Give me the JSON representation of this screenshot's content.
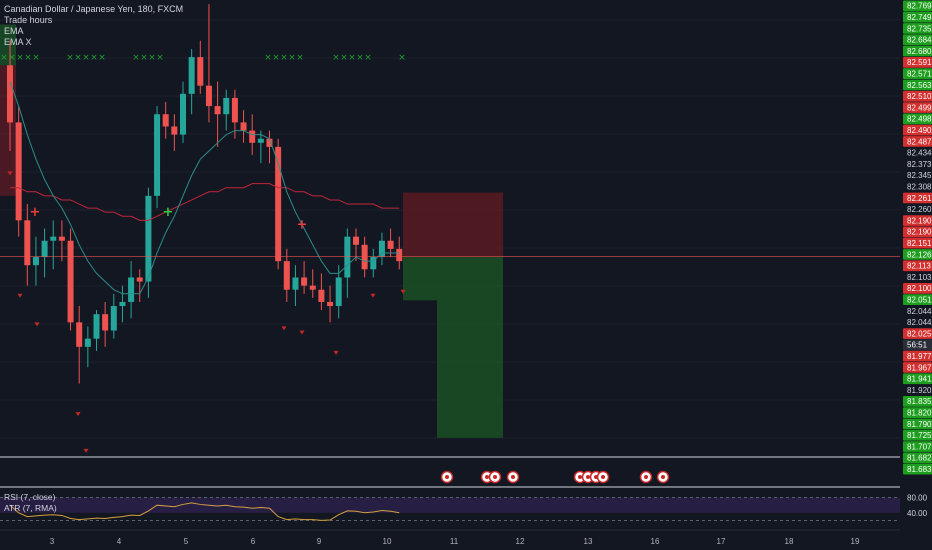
{
  "legend": {
    "symbol": "Canadian Dollar / Japanese Yen, 180, FXCM",
    "indicators": [
      "Trade hours",
      "EMA",
      "EMA X"
    ]
  },
  "sub_legend": {
    "rsi": "RSI (7, close)",
    "atr": "ATR (7, RMA)"
  },
  "colors": {
    "background": "#131722",
    "up": "#26a69a",
    "down": "#ef5350",
    "ema_fast": "#2a8f8a",
    "ema_slow": "#c2263a",
    "price_line": "#ef5350",
    "green_label": "#1e9e1e",
    "red_label": "#d32f2f",
    "rsi_line": "#d4a040",
    "rsi_band": "#2a1f48"
  },
  "chart_data": {
    "type": "candlestick",
    "title": "Canadian Dollar / Japanese Yen, 180, FXCM",
    "ylim": [
      81.66,
      82.78
    ],
    "price_axis_labels": [
      {
        "v": "82.769",
        "c": "g"
      },
      {
        "v": "82.749",
        "c": "g"
      },
      {
        "v": "82.735",
        "c": "g"
      },
      {
        "v": "82.684",
        "c": "g"
      },
      {
        "v": "82.680",
        "c": "g"
      },
      {
        "v": "82.591",
        "c": "r"
      },
      {
        "v": "82.571",
        "c": "g"
      },
      {
        "v": "82.563",
        "c": "g"
      },
      {
        "v": "82.510",
        "c": "r"
      },
      {
        "v": "82.499",
        "c": "r"
      },
      {
        "v": "82.498",
        "c": "g"
      },
      {
        "v": "82.490",
        "c": "r"
      },
      {
        "v": "82.487",
        "c": "r"
      },
      {
        "v": "82.434",
        "c": "n"
      },
      {
        "v": "82.373",
        "c": "n"
      },
      {
        "v": "82.345",
        "c": "n"
      },
      {
        "v": "82.308",
        "c": "n"
      },
      {
        "v": "82.261",
        "c": "r"
      },
      {
        "v": "82.260",
        "c": "n"
      },
      {
        "v": "82.190",
        "c": "r"
      },
      {
        "v": "82.190",
        "c": "r"
      },
      {
        "v": "82.151",
        "c": "r"
      },
      {
        "v": "82.126",
        "c": "g"
      },
      {
        "v": "82.113",
        "c": "r"
      },
      {
        "v": "82.103",
        "c": "n"
      },
      {
        "v": "82.100",
        "c": "r"
      },
      {
        "v": "82.051",
        "c": "g"
      },
      {
        "v": "82.044",
        "c": "n"
      },
      {
        "v": "82.044",
        "c": "n"
      },
      {
        "v": "82.025",
        "c": "r"
      },
      {
        "v": "56:51",
        "c": "d"
      },
      {
        "v": "81.977",
        "c": "r"
      },
      {
        "v": "81.967",
        "c": "r"
      },
      {
        "v": "81.941",
        "c": "g"
      },
      {
        "v": "81.920",
        "c": "n"
      },
      {
        "v": "81.835",
        "c": "g"
      },
      {
        "v": "81.820",
        "c": "g"
      },
      {
        "v": "81.790",
        "c": "g"
      },
      {
        "v": "81.725",
        "c": "g"
      },
      {
        "v": "81.707",
        "c": "g"
      },
      {
        "v": "81.682",
        "c": "g"
      },
      {
        "v": "81.683",
        "c": "g"
      }
    ],
    "x_tick_labels": [
      "3",
      "4",
      "5",
      "6",
      "9",
      "10",
      "11",
      "12",
      "13",
      "16",
      "17",
      "18",
      "19"
    ],
    "current_price": 82.151,
    "candles": [
      [
        82.62,
        82.68,
        82.41,
        82.48
      ],
      [
        82.48,
        82.52,
        82.2,
        82.24
      ],
      [
        82.24,
        82.28,
        82.08,
        82.13
      ],
      [
        82.13,
        82.2,
        82.08,
        82.15
      ],
      [
        82.15,
        82.22,
        82.1,
        82.19
      ],
      [
        82.19,
        82.24,
        82.12,
        82.2
      ],
      [
        82.2,
        82.24,
        82.14,
        82.19
      ],
      [
        82.19,
        82.22,
        81.97,
        81.99
      ],
      [
        81.99,
        82.03,
        81.84,
        81.93
      ],
      [
        81.93,
        81.98,
        81.88,
        81.95
      ],
      [
        81.95,
        82.02,
        81.92,
        82.01
      ],
      [
        82.01,
        82.04,
        81.93,
        81.97
      ],
      [
        81.97,
        82.06,
        81.95,
        82.03
      ],
      [
        82.03,
        82.08,
        81.99,
        82.04
      ],
      [
        82.04,
        82.14,
        82.0,
        82.1
      ],
      [
        82.1,
        82.12,
        82.04,
        82.09
      ],
      [
        82.09,
        82.32,
        82.05,
        82.3
      ],
      [
        82.3,
        82.52,
        82.27,
        82.5
      ],
      [
        82.5,
        82.53,
        82.44,
        82.47
      ],
      [
        82.47,
        82.5,
        82.41,
        82.45
      ],
      [
        82.45,
        82.58,
        82.43,
        82.55
      ],
      [
        82.55,
        82.66,
        82.5,
        82.64
      ],
      [
        82.64,
        82.68,
        82.55,
        82.57
      ],
      [
        82.57,
        82.77,
        82.48,
        82.52
      ],
      [
        82.52,
        82.58,
        82.42,
        82.5
      ],
      [
        82.5,
        82.56,
        82.46,
        82.54
      ],
      [
        82.54,
        82.56,
        82.44,
        82.48
      ],
      [
        82.48,
        82.51,
        82.43,
        82.46
      ],
      [
        82.46,
        82.5,
        82.4,
        82.43
      ],
      [
        82.43,
        82.46,
        82.38,
        82.44
      ],
      [
        82.44,
        82.46,
        82.38,
        82.42
      ],
      [
        82.42,
        82.44,
        82.12,
        82.14
      ],
      [
        82.14,
        82.17,
        82.04,
        82.07
      ],
      [
        82.07,
        82.13,
        82.03,
        82.1
      ],
      [
        82.1,
        82.14,
        82.06,
        82.08
      ],
      [
        82.08,
        82.12,
        82.05,
        82.07
      ],
      [
        82.07,
        82.11,
        82.02,
        82.04
      ],
      [
        82.04,
        82.08,
        81.99,
        82.03
      ],
      [
        82.03,
        82.13,
        82.0,
        82.1
      ],
      [
        82.1,
        82.22,
        82.05,
        82.2
      ],
      [
        82.2,
        82.22,
        82.14,
        82.18
      ],
      [
        82.18,
        82.2,
        82.1,
        82.12
      ],
      [
        82.12,
        82.17,
        82.1,
        82.15
      ],
      [
        82.15,
        82.21,
        82.13,
        82.19
      ],
      [
        82.19,
        82.22,
        82.15,
        82.17
      ],
      [
        82.17,
        82.2,
        82.12,
        82.14
      ]
    ],
    "ema_fast": [
      82.58,
      82.52,
      82.45,
      82.39,
      82.34,
      82.3,
      82.27,
      82.23,
      82.18,
      82.14,
      82.11,
      82.09,
      82.07,
      82.06,
      82.06,
      82.06,
      82.1,
      82.16,
      82.21,
      82.25,
      82.3,
      82.35,
      82.39,
      82.41,
      82.43,
      82.45,
      82.46,
      82.46,
      82.45,
      82.45,
      82.44,
      82.38,
      82.31,
      82.26,
      82.22,
      82.18,
      82.14,
      82.11,
      82.11,
      82.13,
      82.15,
      82.14,
      82.14,
      82.16,
      82.16,
      82.16
    ],
    "ema_slow": [
      82.32,
      82.32,
      82.31,
      82.31,
      82.3,
      82.3,
      82.29,
      82.29,
      82.28,
      82.27,
      82.27,
      82.26,
      82.26,
      82.25,
      82.25,
      82.24,
      82.24,
      82.25,
      82.26,
      82.27,
      82.28,
      82.29,
      82.3,
      82.31,
      82.31,
      82.32,
      82.32,
      82.32,
      82.33,
      82.33,
      82.33,
      82.32,
      82.32,
      82.31,
      82.31,
      82.3,
      82.3,
      82.29,
      82.29,
      82.28,
      82.28,
      82.28,
      82.28,
      82.27,
      82.27,
      82.27
    ],
    "position": {
      "entry": 82.151,
      "stop": 82.308,
      "target": 81.707
    },
    "rsi": [
      60,
      40,
      30,
      32,
      34,
      35,
      33,
      25,
      22,
      24,
      26,
      25,
      28,
      30,
      34,
      33,
      45,
      60,
      58,
      56,
      62,
      66,
      62,
      60,
      58,
      60,
      56,
      55,
      52,
      54,
      52,
      30,
      22,
      24,
      22,
      22,
      20,
      21,
      35,
      45,
      44,
      40,
      42,
      46,
      44,
      40
    ],
    "rsi_ylim": [
      0,
      100
    ],
    "rsi_axis_labels": [
      "80.00",
      "40.00"
    ],
    "event_icons": 10
  }
}
